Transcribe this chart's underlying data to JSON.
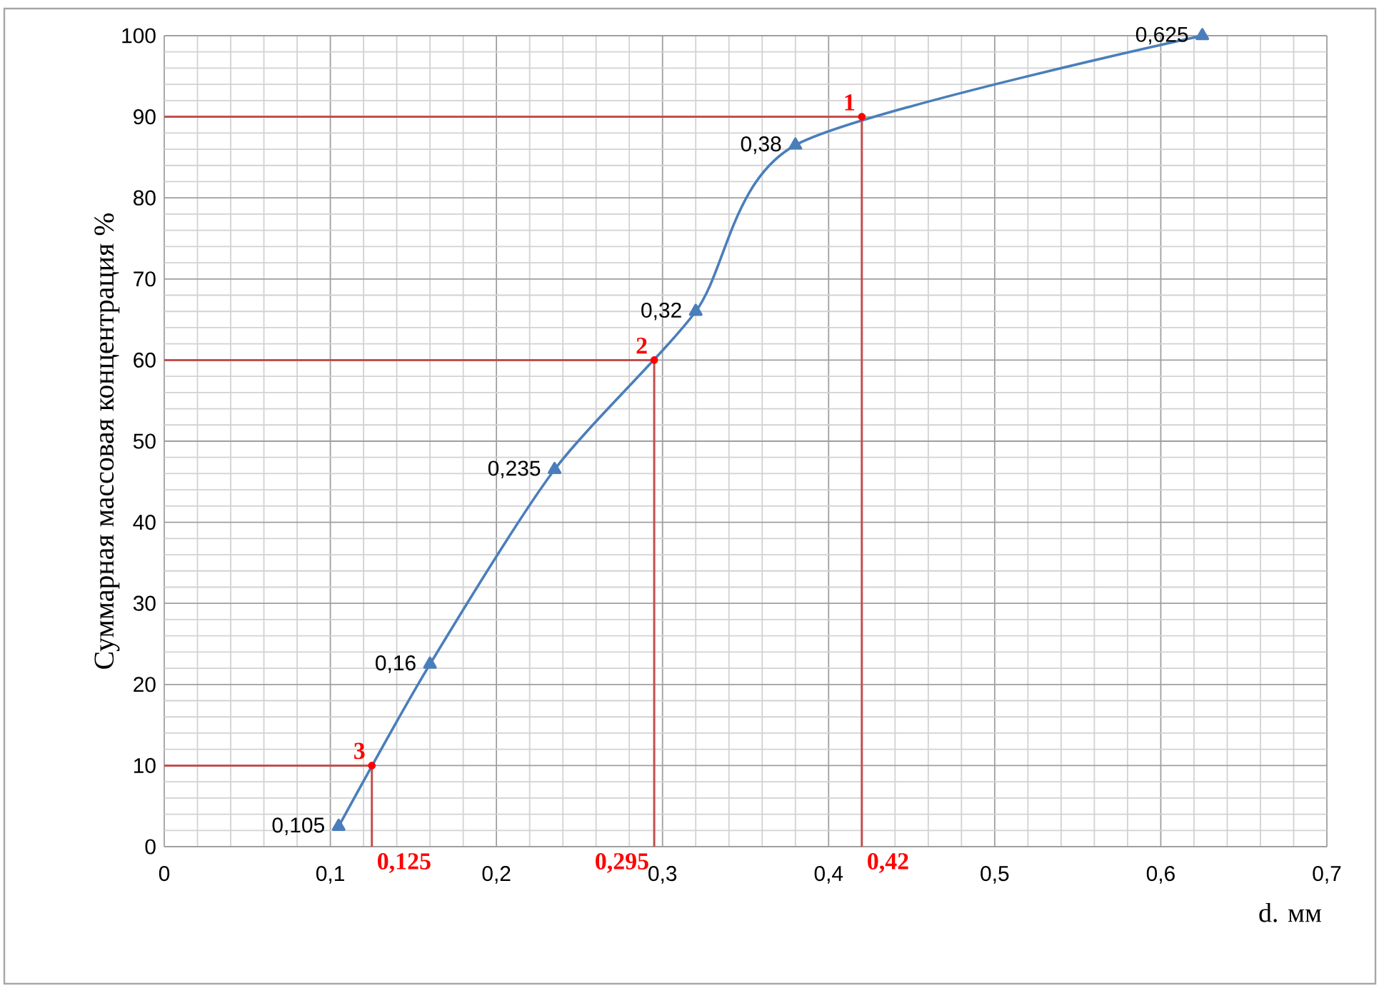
{
  "chart_data": {
    "type": "line",
    "xlabel": "d. мм",
    "ylabel": "Суммарная массовая концентрация %",
    "xlim": [
      0,
      0.7
    ],
    "ylim": [
      0,
      100
    ],
    "xticks": [
      0,
      {
        "value": 0.1,
        "label": "0,1"
      },
      {
        "value": 0.2,
        "label": "0,2"
      },
      {
        "value": 0.3,
        "label": "0,3"
      },
      {
        "value": 0.4,
        "label": "0,4"
      },
      {
        "value": 0.5,
        "label": "0,5"
      },
      {
        "value": 0.6,
        "label": "0,6"
      },
      {
        "value": 0.7,
        "label": "0,7"
      }
    ],
    "yticks": [
      0,
      10,
      20,
      30,
      40,
      50,
      60,
      70,
      80,
      90,
      100
    ],
    "grid": true,
    "series": [
      {
        "color": "#4a7ebb",
        "marker": "triangle",
        "x": [
          0.105,
          0.16,
          0.235,
          0.32,
          0.38,
          0.625
        ],
        "values": [
          2.5,
          22.5,
          46.5,
          66,
          86.5,
          100
        ]
      },
      {
        "type": "step",
        "color": "#c0504d",
        "marker": "none",
        "x": [
          0,
          0.42
        ],
        "values": [
          90,
          0
        ]
      },
      {
        "type": "step",
        "color": "#c0504d",
        "marker": "none",
        "x": [
          0,
          0.295
        ],
        "values": [
          60,
          0
        ]
      },
      {
        "type": "step",
        "color": "#c0504d",
        "marker": "none",
        "x": [
          0,
          0.125
        ],
        "values": [
          10,
          0
        ]
      },
      {
        "type": "scatter",
        "color": "#ff0000",
        "marker": "circle",
        "x": [
          0.42,
          0.295,
          0.125
        ],
        "values": [
          90,
          60,
          10
        ]
      }
    ],
    "annotations": [
      {
        "text": "0,105",
        "x": 0.105,
        "y": 2.5
      },
      {
        "text": "0,16",
        "x": 0.16,
        "y": 22.5
      },
      {
        "text": "0,235",
        "x": 0.235,
        "y": 46.5
      },
      {
        "text": "0,32",
        "x": 0.32,
        "y": 66
      },
      {
        "text": "0,38",
        "x": 0.38,
        "y": 86.5
      },
      {
        "text": "0,625",
        "x": 0.625,
        "y": 100
      },
      {
        "text": "1",
        "x": 0.42,
        "y": 90
      },
      {
        "text": "2",
        "x": 0.295,
        "y": 60
      },
      {
        "text": "3",
        "x": 0.125,
        "y": 10
      },
      {
        "text": "0,42",
        "x": 0.42,
        "y": 0
      },
      {
        "text": "0,295",
        "x": 0.295,
        "y": 0
      },
      {
        "text": "0,125",
        "x": 0.125,
        "y": 0
      }
    ]
  }
}
